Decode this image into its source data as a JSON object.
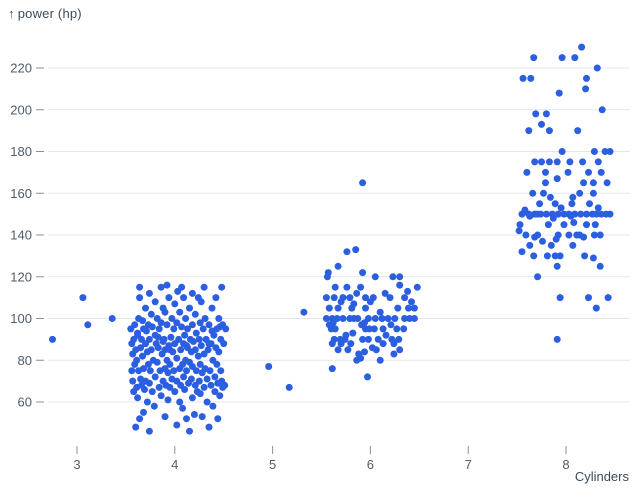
{
  "chart_data": {
    "type": "scatter",
    "title": "",
    "ylabel": "power (hp)",
    "y_label_arrow": "↑",
    "xlabel": "Cylinders",
    "y_ticks": [
      60,
      80,
      100,
      120,
      140,
      160,
      180,
      200,
      220
    ],
    "x_ticks": [
      3,
      4,
      5,
      6,
      7,
      8
    ],
    "ylim": [
      44,
      232
    ],
    "xlim": [
      2.6,
      8.6
    ],
    "grid": "horizontal-only",
    "legend": "none",
    "colors": {
      "dot": "#2b5fe0",
      "grid": "#e4e7ea",
      "tick": "#8a919b",
      "tick_text": "#515b69",
      "axis_label": "#3e4a59"
    },
    "points": [
      [
        2.75,
        90
      ],
      [
        3.06,
        110
      ],
      [
        3.11,
        97
      ],
      [
        3.36,
        100
      ],
      [
        3.74,
        46
      ],
      [
        4.15,
        46
      ],
      [
        3.6,
        48
      ],
      [
        4.35,
        48
      ],
      [
        4.02,
        49
      ],
      [
        3.64,
        52
      ],
      [
        4.12,
        52
      ],
      [
        4.44,
        52
      ],
      [
        3.9,
        53
      ],
      [
        4.28,
        53
      ],
      [
        4.2,
        54
      ],
      [
        3.68,
        55
      ],
      [
        4.08,
        57
      ],
      [
        3.79,
        58
      ],
      [
        4.39,
        58
      ],
      [
        3.72,
        60
      ],
      [
        4.05,
        60
      ],
      [
        4.33,
        60
      ],
      [
        3.93,
        61
      ],
      [
        3.62,
        62
      ],
      [
        4.18,
        62
      ],
      [
        3.86,
        63
      ],
      [
        4.46,
        63
      ],
      [
        4.26,
        64
      ],
      [
        3.58,
        65
      ],
      [
        3.77,
        65
      ],
      [
        4.0,
        65
      ],
      [
        4.23,
        65
      ],
      [
        4.41,
        65
      ],
      [
        3.69,
        66
      ],
      [
        4.1,
        66
      ],
      [
        3.61,
        67
      ],
      [
        3.84,
        67
      ],
      [
        3.95,
        67
      ],
      [
        4.3,
        67
      ],
      [
        4.49,
        67
      ],
      [
        3.66,
        68
      ],
      [
        3.91,
        68
      ],
      [
        4.06,
        68
      ],
      [
        4.21,
        68
      ],
      [
        4.37,
        68
      ],
      [
        4.51,
        68
      ],
      [
        3.74,
        69
      ],
      [
        4.14,
        69
      ],
      [
        4.44,
        69
      ],
      [
        3.57,
        70
      ],
      [
        3.7,
        70
      ],
      [
        3.88,
        70
      ],
      [
        4.02,
        70
      ],
      [
        4.25,
        70
      ],
      [
        4.48,
        70
      ],
      [
        3.65,
        71
      ],
      [
        3.97,
        71
      ],
      [
        4.17,
        71
      ],
      [
        4.33,
        71
      ],
      [
        3.8,
        72
      ],
      [
        4.09,
        72
      ],
      [
        4.41,
        72
      ],
      [
        3.93,
        74
      ],
      [
        4.28,
        74
      ],
      [
        3.56,
        75
      ],
      [
        3.63,
        75
      ],
      [
        3.75,
        75
      ],
      [
        3.85,
        75
      ],
      [
        3.99,
        75
      ],
      [
        4.12,
        75
      ],
      [
        4.22,
        75
      ],
      [
        4.36,
        75
      ],
      [
        4.47,
        75
      ],
      [
        3.68,
        76
      ],
      [
        3.9,
        76
      ],
      [
        4.05,
        76
      ],
      [
        4.31,
        76
      ],
      [
        4.18,
        77
      ],
      [
        3.59,
        78
      ],
      [
        3.73,
        78
      ],
      [
        3.95,
        78
      ],
      [
        4.08,
        78
      ],
      [
        4.26,
        78
      ],
      [
        4.43,
        78
      ],
      [
        3.82,
        79
      ],
      [
        4.15,
        79
      ],
      [
        3.61,
        80
      ],
      [
        3.78,
        80
      ],
      [
        3.92,
        80
      ],
      [
        4.11,
        80
      ],
      [
        4.39,
        80
      ],
      [
        4.02,
        81
      ],
      [
        3.67,
        82
      ],
      [
        4.24,
        82
      ],
      [
        3.57,
        83
      ],
      [
        3.87,
        83
      ],
      [
        4.3,
        83
      ],
      [
        3.72,
        84
      ],
      [
        3.98,
        84
      ],
      [
        4.17,
        84
      ],
      [
        4.45,
        84
      ],
      [
        3.6,
        85
      ],
      [
        3.76,
        85
      ],
      [
        3.9,
        85
      ],
      [
        4.06,
        85
      ],
      [
        4.21,
        85
      ],
      [
        4.34,
        85
      ],
      [
        3.95,
        85
      ],
      [
        3.65,
        86
      ],
      [
        3.83,
        86
      ],
      [
        4.13,
        86
      ],
      [
        4.42,
        86
      ],
      [
        3.94,
        87
      ],
      [
        4.27,
        87
      ],
      [
        4.12,
        87
      ],
      [
        3.56,
        88
      ],
      [
        3.7,
        88
      ],
      [
        3.81,
        88
      ],
      [
        4.0,
        88
      ],
      [
        4.09,
        88
      ],
      [
        4.37,
        88
      ],
      [
        4.5,
        88
      ],
      [
        4.35,
        88
      ],
      [
        3.88,
        89
      ],
      [
        4.19,
        89
      ],
      [
        3.58,
        90
      ],
      [
        3.66,
        90
      ],
      [
        3.74,
        90
      ],
      [
        3.89,
        90
      ],
      [
        4.04,
        90
      ],
      [
        4.16,
        90
      ],
      [
        4.25,
        90
      ],
      [
        4.32,
        90
      ],
      [
        4.47,
        90
      ],
      [
        3.96,
        91
      ],
      [
        3.83,
        91
      ],
      [
        3.62,
        92
      ],
      [
        3.8,
        92
      ],
      [
        4.1,
        92
      ],
      [
        4.4,
        92
      ],
      [
        4.22,
        93
      ],
      [
        3.62,
        93
      ],
      [
        3.71,
        94
      ],
      [
        4.38,
        94
      ],
      [
        3.55,
        95
      ],
      [
        3.68,
        95
      ],
      [
        3.84,
        95
      ],
      [
        3.99,
        95
      ],
      [
        4.13,
        95
      ],
      [
        4.29,
        95
      ],
      [
        4.43,
        95
      ],
      [
        4.52,
        95
      ],
      [
        3.77,
        96
      ],
      [
        4.07,
        96
      ],
      [
        4.46,
        96
      ],
      [
        3.59,
        97
      ],
      [
        3.73,
        97
      ],
      [
        3.92,
        97
      ],
      [
        4.18,
        97
      ],
      [
        4.35,
        97
      ],
      [
        4.49,
        97
      ],
      [
        3.86,
        98
      ],
      [
        4.02,
        98
      ],
      [
        4.26,
        98
      ],
      [
        3.67,
        99
      ],
      [
        3.63,
        100
      ],
      [
        3.82,
        100
      ],
      [
        3.97,
        100
      ],
      [
        4.11,
        100
      ],
      [
        4.31,
        100
      ],
      [
        4.45,
        100
      ],
      [
        3.76,
        102
      ],
      [
        4.21,
        102
      ],
      [
        3.9,
        103
      ],
      [
        4.05,
        103
      ],
      [
        3.7,
        105
      ],
      [
        3.88,
        105
      ],
      [
        4.15,
        105
      ],
      [
        4.38,
        105
      ],
      [
        4.0,
        107
      ],
      [
        3.8,
        108
      ],
      [
        4.27,
        108
      ],
      [
        3.64,
        110
      ],
      [
        3.94,
        110
      ],
      [
        4.09,
        110
      ],
      [
        4.24,
        110
      ],
      [
        4.42,
        110
      ],
      [
        3.74,
        112
      ],
      [
        4.18,
        112
      ],
      [
        4.03,
        113
      ],
      [
        3.64,
        115
      ],
      [
        3.86,
        115
      ],
      [
        4.07,
        115
      ],
      [
        4.3,
        115
      ],
      [
        4.48,
        115
      ],
      [
        3.92,
        116
      ],
      [
        4.96,
        77
      ],
      [
        5.17,
        67
      ],
      [
        5.32,
        103
      ],
      [
        5.92,
        165
      ],
      [
        5.85,
        133
      ],
      [
        5.76,
        132
      ],
      [
        5.67,
        125
      ],
      [
        5.57,
        122
      ],
      [
        5.92,
        122
      ],
      [
        5.56,
        120
      ],
      [
        6.05,
        120
      ],
      [
        6.23,
        120
      ],
      [
        6.3,
        120
      ],
      [
        6.3,
        116
      ],
      [
        5.64,
        115
      ],
      [
        5.76,
        115
      ],
      [
        5.9,
        115
      ],
      [
        6.48,
        115
      ],
      [
        6.38,
        113
      ],
      [
        5.86,
        112
      ],
      [
        6.15,
        112
      ],
      [
        5.55,
        110
      ],
      [
        5.63,
        110
      ],
      [
        5.72,
        110
      ],
      [
        5.79,
        110
      ],
      [
        5.95,
        110
      ],
      [
        6.03,
        110
      ],
      [
        6.2,
        110
      ],
      [
        6.35,
        110
      ],
      [
        5.7,
        108
      ],
      [
        6.0,
        108
      ],
      [
        6.42,
        108
      ],
      [
        5.83,
        107
      ],
      [
        5.58,
        105
      ],
      [
        5.67,
        105
      ],
      [
        5.81,
        105
      ],
      [
        5.95,
        105
      ],
      [
        6.28,
        105
      ],
      [
        6.39,
        105
      ],
      [
        6.45,
        105
      ],
      [
        6.1,
        103
      ],
      [
        5.55,
        100
      ],
      [
        5.61,
        100
      ],
      [
        5.66,
        100
      ],
      [
        5.72,
        100
      ],
      [
        5.79,
        100
      ],
      [
        5.83,
        100
      ],
      [
        5.87,
        100
      ],
      [
        5.98,
        100
      ],
      [
        6.05,
        100
      ],
      [
        6.12,
        100
      ],
      [
        6.18,
        100
      ],
      [
        6.25,
        100
      ],
      [
        6.35,
        100
      ],
      [
        6.4,
        100
      ],
      [
        6.45,
        100
      ],
      [
        5.62,
        98
      ],
      [
        5.94,
        98
      ],
      [
        5.58,
        97
      ],
      [
        5.91,
        97
      ],
      [
        6.21,
        97
      ],
      [
        5.6,
        95
      ],
      [
        5.64,
        95
      ],
      [
        5.95,
        95
      ],
      [
        5.99,
        95
      ],
      [
        6.04,
        95
      ],
      [
        6.13,
        95
      ],
      [
        6.27,
        95
      ],
      [
        6.34,
        95
      ],
      [
        5.82,
        93
      ],
      [
        5.75,
        92
      ],
      [
        6.16,
        92
      ],
      [
        5.63,
        90
      ],
      [
        5.69,
        90
      ],
      [
        5.74,
        90
      ],
      [
        5.92,
        90
      ],
      [
        5.98,
        90
      ],
      [
        6.08,
        90
      ],
      [
        6.22,
        90
      ],
      [
        6.29,
        90
      ],
      [
        5.61,
        88
      ],
      [
        5.7,
        88
      ],
      [
        5.8,
        88
      ],
      [
        6.13,
        88
      ],
      [
        6.24,
        88
      ],
      [
        6.02,
        86
      ],
      [
        5.67,
        85
      ],
      [
        5.77,
        85
      ],
      [
        6.06,
        85
      ],
      [
        6.3,
        85
      ],
      [
        5.94,
        84
      ],
      [
        5.88,
        83
      ],
      [
        6.24,
        83
      ],
      [
        5.9,
        81
      ],
      [
        5.86,
        80
      ],
      [
        6.1,
        80
      ],
      [
        5.61,
        76
      ],
      [
        5.97,
        72
      ],
      [
        8.16,
        230
      ],
      [
        7.67,
        225
      ],
      [
        7.96,
        225
      ],
      [
        8.09,
        225
      ],
      [
        8.32,
        220
      ],
      [
        7.56,
        215
      ],
      [
        7.64,
        215
      ],
      [
        8.21,
        215
      ],
      [
        8.2,
        210
      ],
      [
        7.93,
        208
      ],
      [
        8.37,
        200
      ],
      [
        7.69,
        198
      ],
      [
        7.8,
        198
      ],
      [
        7.75,
        193
      ],
      [
        7.62,
        190
      ],
      [
        7.83,
        190
      ],
      [
        8.12,
        190
      ],
      [
        7.96,
        180
      ],
      [
        8.29,
        180
      ],
      [
        8.4,
        180
      ],
      [
        8.45,
        180
      ],
      [
        7.68,
        175
      ],
      [
        7.75,
        175
      ],
      [
        7.83,
        175
      ],
      [
        7.91,
        175
      ],
      [
        8.04,
        175
      ],
      [
        8.17,
        175
      ],
      [
        8.33,
        175
      ],
      [
        7.6,
        170
      ],
      [
        7.79,
        170
      ],
      [
        8.02,
        170
      ],
      [
        8.23,
        170
      ],
      [
        8.36,
        170
      ],
      [
        7.91,
        167
      ],
      [
        7.79,
        165
      ],
      [
        8.18,
        165
      ],
      [
        8.28,
        165
      ],
      [
        8.42,
        165
      ],
      [
        7.66,
        160
      ],
      [
        7.77,
        160
      ],
      [
        8.14,
        160
      ],
      [
        8.28,
        160
      ],
      [
        7.84,
        158
      ],
      [
        8.07,
        158
      ],
      [
        7.73,
        155
      ],
      [
        7.89,
        155
      ],
      [
        8.06,
        155
      ],
      [
        8.24,
        155
      ],
      [
        7.95,
        153
      ],
      [
        8.33,
        153
      ],
      [
        7.58,
        152
      ],
      [
        7.55,
        150
      ],
      [
        7.62,
        150
      ],
      [
        7.68,
        150
      ],
      [
        7.71,
        150
      ],
      [
        7.74,
        150
      ],
      [
        7.8,
        150
      ],
      [
        7.86,
        150
      ],
      [
        7.92,
        150
      ],
      [
        7.98,
        150
      ],
      [
        8.03,
        150
      ],
      [
        8.09,
        150
      ],
      [
        8.15,
        150
      ],
      [
        8.21,
        150
      ],
      [
        8.27,
        150
      ],
      [
        8.31,
        150
      ],
      [
        8.36,
        150
      ],
      [
        8.41,
        150
      ],
      [
        8.45,
        150
      ],
      [
        7.63,
        149
      ],
      [
        8.05,
        149
      ],
      [
        7.87,
        148
      ],
      [
        8.08,
        146
      ],
      [
        7.53,
        145
      ],
      [
        7.82,
        145
      ],
      [
        7.98,
        145
      ],
      [
        8.21,
        145
      ],
      [
        8.3,
        145
      ],
      [
        7.52,
        142
      ],
      [
        7.59,
        140
      ],
      [
        7.71,
        140
      ],
      [
        7.92,
        140
      ],
      [
        8.03,
        140
      ],
      [
        8.11,
        140
      ],
      [
        8.14,
        140
      ],
      [
        8.29,
        140
      ],
      [
        8.35,
        140
      ],
      [
        7.68,
        139
      ],
      [
        8.18,
        139
      ],
      [
        7.9,
        138
      ],
      [
        7.76,
        137
      ],
      [
        7.63,
        135
      ],
      [
        7.85,
        135
      ],
      [
        8.07,
        135
      ],
      [
        7.55,
        132
      ],
      [
        7.67,
        130
      ],
      [
        7.81,
        130
      ],
      [
        7.89,
        130
      ],
      [
        7.94,
        130
      ],
      [
        8.19,
        130
      ],
      [
        8.28,
        129
      ],
      [
        7.91,
        125
      ],
      [
        8.35,
        125
      ],
      [
        7.71,
        120
      ],
      [
        7.94,
        110
      ],
      [
        8.23,
        110
      ],
      [
        8.43,
        110
      ],
      [
        8.31,
        105
      ],
      [
        7.91,
        90
      ]
    ]
  }
}
